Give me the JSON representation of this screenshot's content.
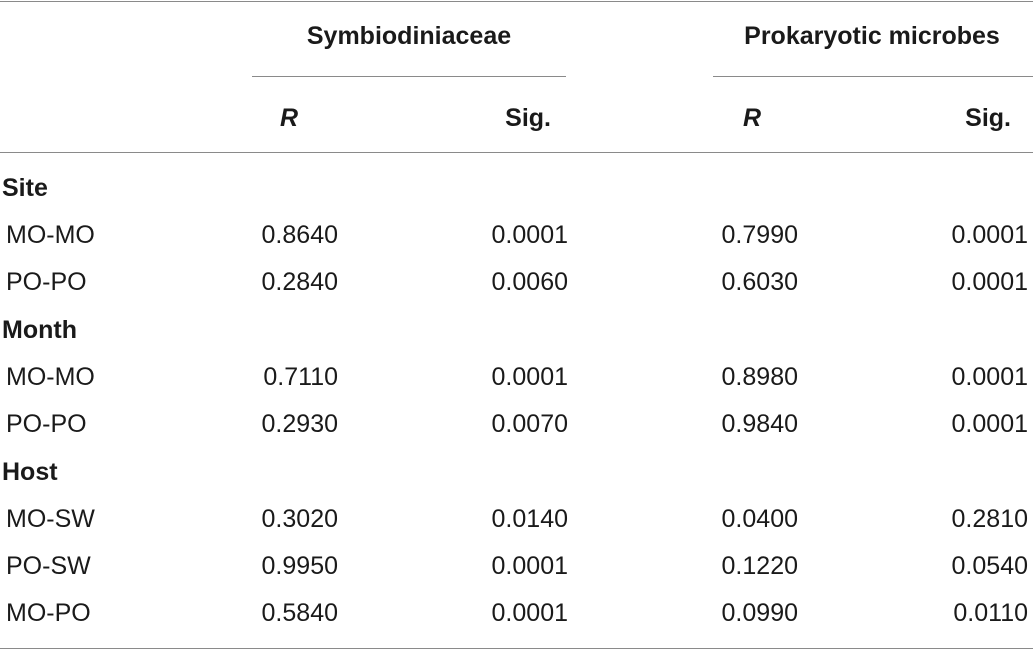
{
  "table": {
    "group_headers": [
      "Symbiodiniaceae",
      "Prokaryotic microbes"
    ],
    "column_headers": [
      "R",
      "Sig.",
      "R",
      "Sig."
    ],
    "sections": [
      {
        "label": "Site",
        "rows": [
          {
            "label": "MO-MO",
            "values": [
              "0.8640",
              "0.0001",
              "0.7990",
              "0.0001"
            ]
          },
          {
            "label": "PO-PO",
            "values": [
              "0.2840",
              "0.0060",
              "0.6030",
              "0.0001"
            ]
          }
        ]
      },
      {
        "label": "Month",
        "rows": [
          {
            "label": "MO-MO",
            "values": [
              "0.7110",
              "0.0001",
              "0.8980",
              "0.0001"
            ]
          },
          {
            "label": "PO-PO",
            "values": [
              "0.2930",
              "0.0070",
              "0.9840",
              "0.0001"
            ]
          }
        ]
      },
      {
        "label": "Host",
        "rows": [
          {
            "label": "MO-SW",
            "values": [
              "0.3020",
              "0.0140",
              "0.0400",
              "0.2810"
            ]
          },
          {
            "label": "PO-SW",
            "values": [
              "0.9950",
              "0.0001",
              "0.1220",
              "0.0540"
            ]
          },
          {
            "label": "MO-PO",
            "values": [
              "0.5840",
              "0.0001",
              "0.0990",
              "0.0110"
            ]
          }
        ]
      }
    ]
  }
}
